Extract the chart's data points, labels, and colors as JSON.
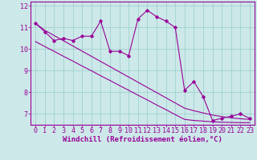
{
  "x": [
    0,
    1,
    2,
    3,
    4,
    5,
    6,
    7,
    8,
    9,
    10,
    11,
    12,
    13,
    14,
    15,
    16,
    17,
    18,
    19,
    20,
    21,
    22,
    23
  ],
  "y_main": [
    11.2,
    10.8,
    10.4,
    10.5,
    10.4,
    10.6,
    10.6,
    11.3,
    9.9,
    9.9,
    9.7,
    11.4,
    11.8,
    11.5,
    11.3,
    11.0,
    8.1,
    8.5,
    7.8,
    6.7,
    6.8,
    6.9,
    7.0,
    6.8
  ],
  "y_line1": [
    11.2,
    10.87,
    10.63,
    10.39,
    10.15,
    9.91,
    9.67,
    9.43,
    9.19,
    8.95,
    8.71,
    8.47,
    8.23,
    7.99,
    7.75,
    7.51,
    7.27,
    7.15,
    7.05,
    6.95,
    6.88,
    6.82,
    6.78,
    6.75
  ],
  "y_line2": [
    10.35,
    10.12,
    9.9,
    9.67,
    9.45,
    9.22,
    9.0,
    8.77,
    8.55,
    8.32,
    8.1,
    7.87,
    7.65,
    7.42,
    7.2,
    6.97,
    6.75,
    6.7,
    6.67,
    6.64,
    6.62,
    6.61,
    6.6,
    6.6
  ],
  "line_color": "#990099",
  "bg_color": "#cce8e8",
  "grid_color": "#99cccc",
  "xlabel": "Windchill (Refroidissement éolien,°C)",
  "ylim": [
    6.5,
    12.2
  ],
  "xlim": [
    -0.5,
    23.5
  ],
  "yticks": [
    7,
    8,
    9,
    10,
    11,
    12
  ],
  "xticks": [
    0,
    1,
    2,
    3,
    4,
    5,
    6,
    7,
    8,
    9,
    10,
    11,
    12,
    13,
    14,
    15,
    16,
    17,
    18,
    19,
    20,
    21,
    22,
    23
  ],
  "tick_fontsize": 6.0,
  "xlabel_fontsize": 6.5
}
